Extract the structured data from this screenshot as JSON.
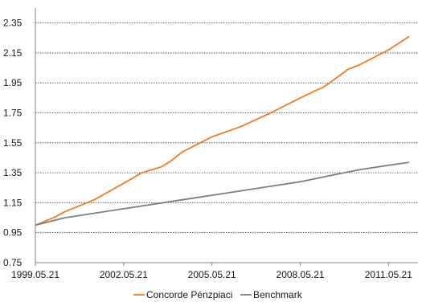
{
  "chart_data": {
    "type": "line",
    "title": "",
    "xlabel": "",
    "ylabel": "",
    "x_range": [
      "1999.05.21",
      "2012.05.21"
    ],
    "ylim": [
      0.75,
      2.45
    ],
    "y_ticks": [
      "0.75",
      "0.95",
      "1.15",
      "1.35",
      "1.55",
      "1.75",
      "1.95",
      "2.15",
      "2.35"
    ],
    "x_ticks": [
      "1999.05.21",
      "2002.05.21",
      "2005.05.21",
      "2008.05.21",
      "2011.05.21"
    ],
    "grid": "horizontal dashed",
    "legend_position": "bottom",
    "series": [
      {
        "name": "Concorde Pénzpiaci",
        "color": "#f47b20",
        "points": [
          [
            "1999.05.21",
            1.0
          ],
          [
            "2000.01.01",
            1.05
          ],
          [
            "2000.05.21",
            1.09
          ],
          [
            "2001.05.21",
            1.17
          ],
          [
            "2002.05.21",
            1.28
          ],
          [
            "2003.01.01",
            1.35
          ],
          [
            "2003.09.01",
            1.39
          ],
          [
            "2004.01.01",
            1.43
          ],
          [
            "2004.05.21",
            1.49
          ],
          [
            "2005.05.21",
            1.59
          ],
          [
            "2006.05.21",
            1.66
          ],
          [
            "2007.05.21",
            1.75
          ],
          [
            "2008.05.21",
            1.85
          ],
          [
            "2008.12.01",
            1.9
          ],
          [
            "2009.03.01",
            1.92
          ],
          [
            "2009.05.21",
            1.95
          ],
          [
            "2010.01.01",
            2.04
          ],
          [
            "2010.05.21",
            2.07
          ],
          [
            "2011.05.21",
            2.17
          ],
          [
            "2012.02.01",
            2.26
          ]
        ]
      },
      {
        "name": "Benchmark",
        "color": "#7f7f7f",
        "points": [
          [
            "1999.05.21",
            1.0
          ],
          [
            "2000.05.21",
            1.05
          ],
          [
            "2001.05.21",
            1.08
          ],
          [
            "2002.05.21",
            1.11
          ],
          [
            "2003.05.21",
            1.14
          ],
          [
            "2004.05.21",
            1.17
          ],
          [
            "2005.05.21",
            1.2
          ],
          [
            "2006.05.21",
            1.23
          ],
          [
            "2007.05.21",
            1.26
          ],
          [
            "2008.05.21",
            1.29
          ],
          [
            "2009.05.21",
            1.33
          ],
          [
            "2010.05.21",
            1.37
          ],
          [
            "2011.05.21",
            1.4
          ],
          [
            "2012.02.01",
            1.42
          ]
        ]
      }
    ]
  }
}
